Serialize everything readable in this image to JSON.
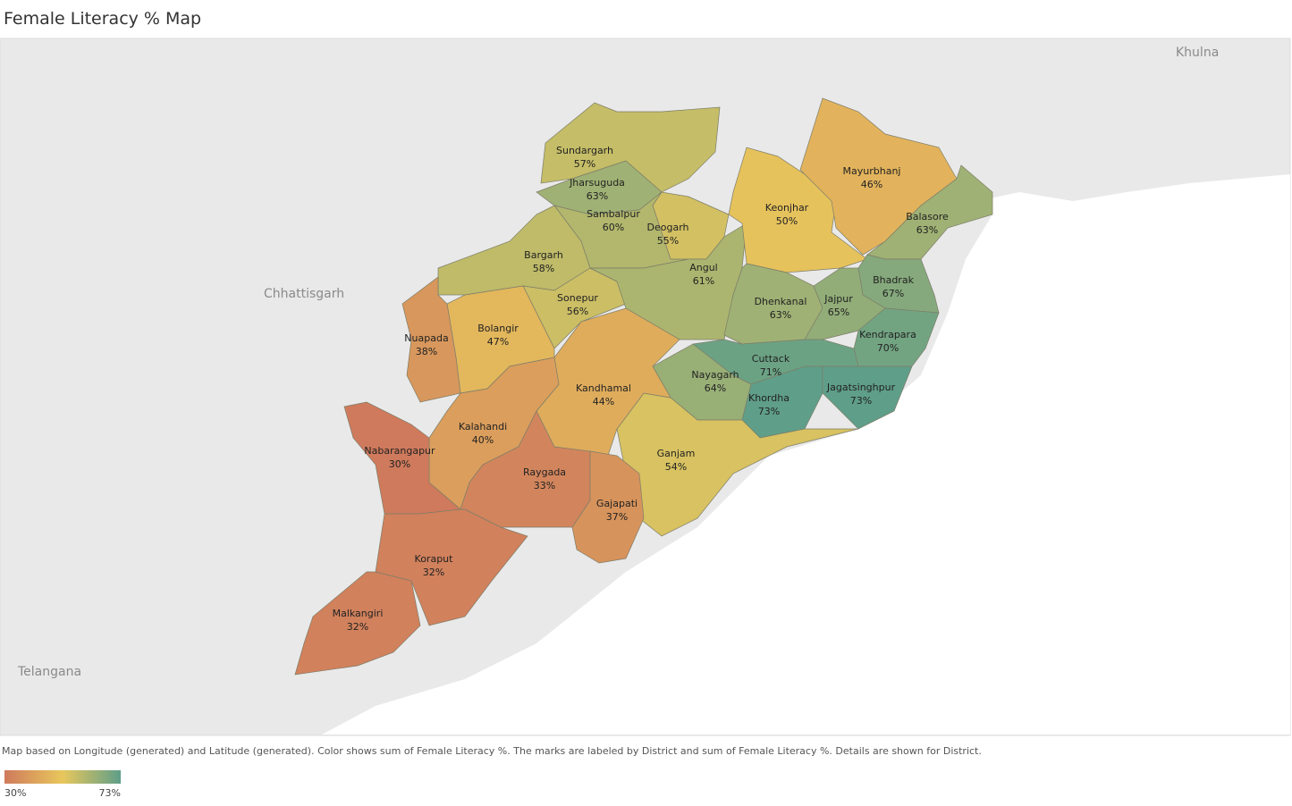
{
  "title": "Female Literacy % Map",
  "place_labels": [
    "Khulna",
    "Chhattisgarh",
    "Telangana"
  ],
  "districts": [
    {
      "name": "Sundargarh",
      "value": 57,
      "value_label": "57%"
    },
    {
      "name": "Jharsuguda",
      "value": 63,
      "value_label": "63%"
    },
    {
      "name": "Sambalpur",
      "value": 60,
      "value_label": "60%"
    },
    {
      "name": "Deogarh",
      "value": 55,
      "value_label": "55%"
    },
    {
      "name": "Bargarh",
      "value": 58,
      "value_label": "58%"
    },
    {
      "name": "Sonepur",
      "value": 56,
      "value_label": "56%"
    },
    {
      "name": "Angul",
      "value": 61,
      "value_label": "61%"
    },
    {
      "name": "Keonjhar",
      "value": 50,
      "value_label": "50%"
    },
    {
      "name": "Mayurbhanj",
      "value": 46,
      "value_label": "46%"
    },
    {
      "name": "Balasore",
      "value": 63,
      "value_label": "63%"
    },
    {
      "name": "Bhadrak",
      "value": 67,
      "value_label": "67%"
    },
    {
      "name": "Dhenkanal",
      "value": 63,
      "value_label": "63%"
    },
    {
      "name": "Jajpur",
      "value": 65,
      "value_label": "65%"
    },
    {
      "name": "Kendrapara",
      "value": 70,
      "value_label": "70%"
    },
    {
      "name": "Cuttack",
      "value": 71,
      "value_label": "71%"
    },
    {
      "name": "Nayagarh",
      "value": 64,
      "value_label": "64%"
    },
    {
      "name": "Khordha",
      "value": 73,
      "value_label": "73%"
    },
    {
      "name": "Jagatsinghpur",
      "value": 73,
      "value_label": "73%"
    },
    {
      "name": "Ganjam",
      "value": 54,
      "value_label": "54%"
    },
    {
      "name": "Kandhamal",
      "value": 44,
      "value_label": "44%"
    },
    {
      "name": "Bolangir",
      "value": 47,
      "value_label": "47%"
    },
    {
      "name": "Nuapada",
      "value": 38,
      "value_label": "38%"
    },
    {
      "name": "Kalahandi",
      "value": 40,
      "value_label": "40%"
    },
    {
      "name": "Nabarangapur",
      "value": 30,
      "value_label": "30%"
    },
    {
      "name": "Raygada",
      "value": 33,
      "value_label": "33%"
    },
    {
      "name": "Gajapati",
      "value": 37,
      "value_label": "37%"
    },
    {
      "name": "Koraput",
      "value": 32,
      "value_label": "32%"
    },
    {
      "name": "Malkangiri",
      "value": 32,
      "value_label": "32%"
    }
  ],
  "note": "Map based on Longitude (generated) and Latitude (generated).  Color shows sum of Female Literacy %.  The marks are labeled by District and sum of Female Literacy %.  Details are shown for District.",
  "legend": {
    "min": {
      "value": 30,
      "label": "30%"
    },
    "max": {
      "value": 73,
      "label": "73%"
    },
    "colors": [
      "#cf7a5c",
      "#e8c75c",
      "#5f9e88"
    ]
  }
}
